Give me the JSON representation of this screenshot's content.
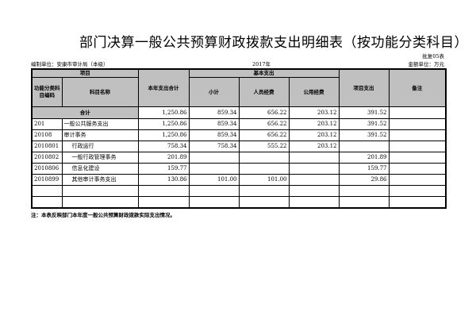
{
  "title": "部门决算一般公共预算财政拨款支出明细表（按功能分类科目）",
  "form_no": "批复05表",
  "unit": "编制单位：安康市审计局（本级）",
  "year": "2017年",
  "currency_unit": "金额单位：万元",
  "headers": {
    "item": "项目",
    "code": "功能分类科目编码",
    "name": "科目名称",
    "total": "本年支出合计",
    "basic": "基本支出",
    "subtotal": "小计",
    "personnel": "人员经费",
    "public": "公用经费",
    "project": "项目支出",
    "remark": "备注"
  },
  "total_row": {
    "label": "合计",
    "total": "1,250.86",
    "subtotal": "859.34",
    "personnel": "656.22",
    "public": "203.12",
    "project": "391.52",
    "remark": ""
  },
  "rows": [
    {
      "code": "201",
      "name": "一般公共服务支出",
      "total": "1,250.86",
      "subtotal": "859.34",
      "personnel": "656.22",
      "public": "203.12",
      "project": "391.52",
      "remark": ""
    },
    {
      "code": "20108",
      "name": "审计事务",
      "total": "1,250.86",
      "subtotal": "859.34",
      "personnel": "656.22",
      "public": "203.12",
      "project": "391.52",
      "remark": ""
    },
    {
      "code": "2010801",
      "name": "行政运行",
      "total": "758.34",
      "subtotal": "758.34",
      "personnel": "555.22",
      "public": "203.12",
      "project": "",
      "remark": ""
    },
    {
      "code": "2010802",
      "name": "一般行政管理事务",
      "total": "201.89",
      "subtotal": "",
      "personnel": "",
      "public": "",
      "project": "201.89",
      "remark": ""
    },
    {
      "code": "2010806",
      "name": "信息化建设",
      "total": "159.77",
      "subtotal": "",
      "personnel": "",
      "public": "",
      "project": "159.77",
      "remark": ""
    },
    {
      "code": "2010899",
      "name": "其他审计事务支出",
      "total": "130.86",
      "subtotal": "101.00",
      "personnel": "101.00",
      "public": "",
      "project": "29.86",
      "remark": ""
    },
    {
      "code": "",
      "name": "",
      "total": "",
      "subtotal": "",
      "personnel": "",
      "public": "",
      "project": "",
      "remark": ""
    },
    {
      "code": "",
      "name": "",
      "total": "",
      "subtotal": "",
      "personnel": "",
      "public": "",
      "project": "",
      "remark": ""
    }
  ],
  "note": "注：本表反映部门本年度一般公共预算财政拨款实际支出情况。"
}
